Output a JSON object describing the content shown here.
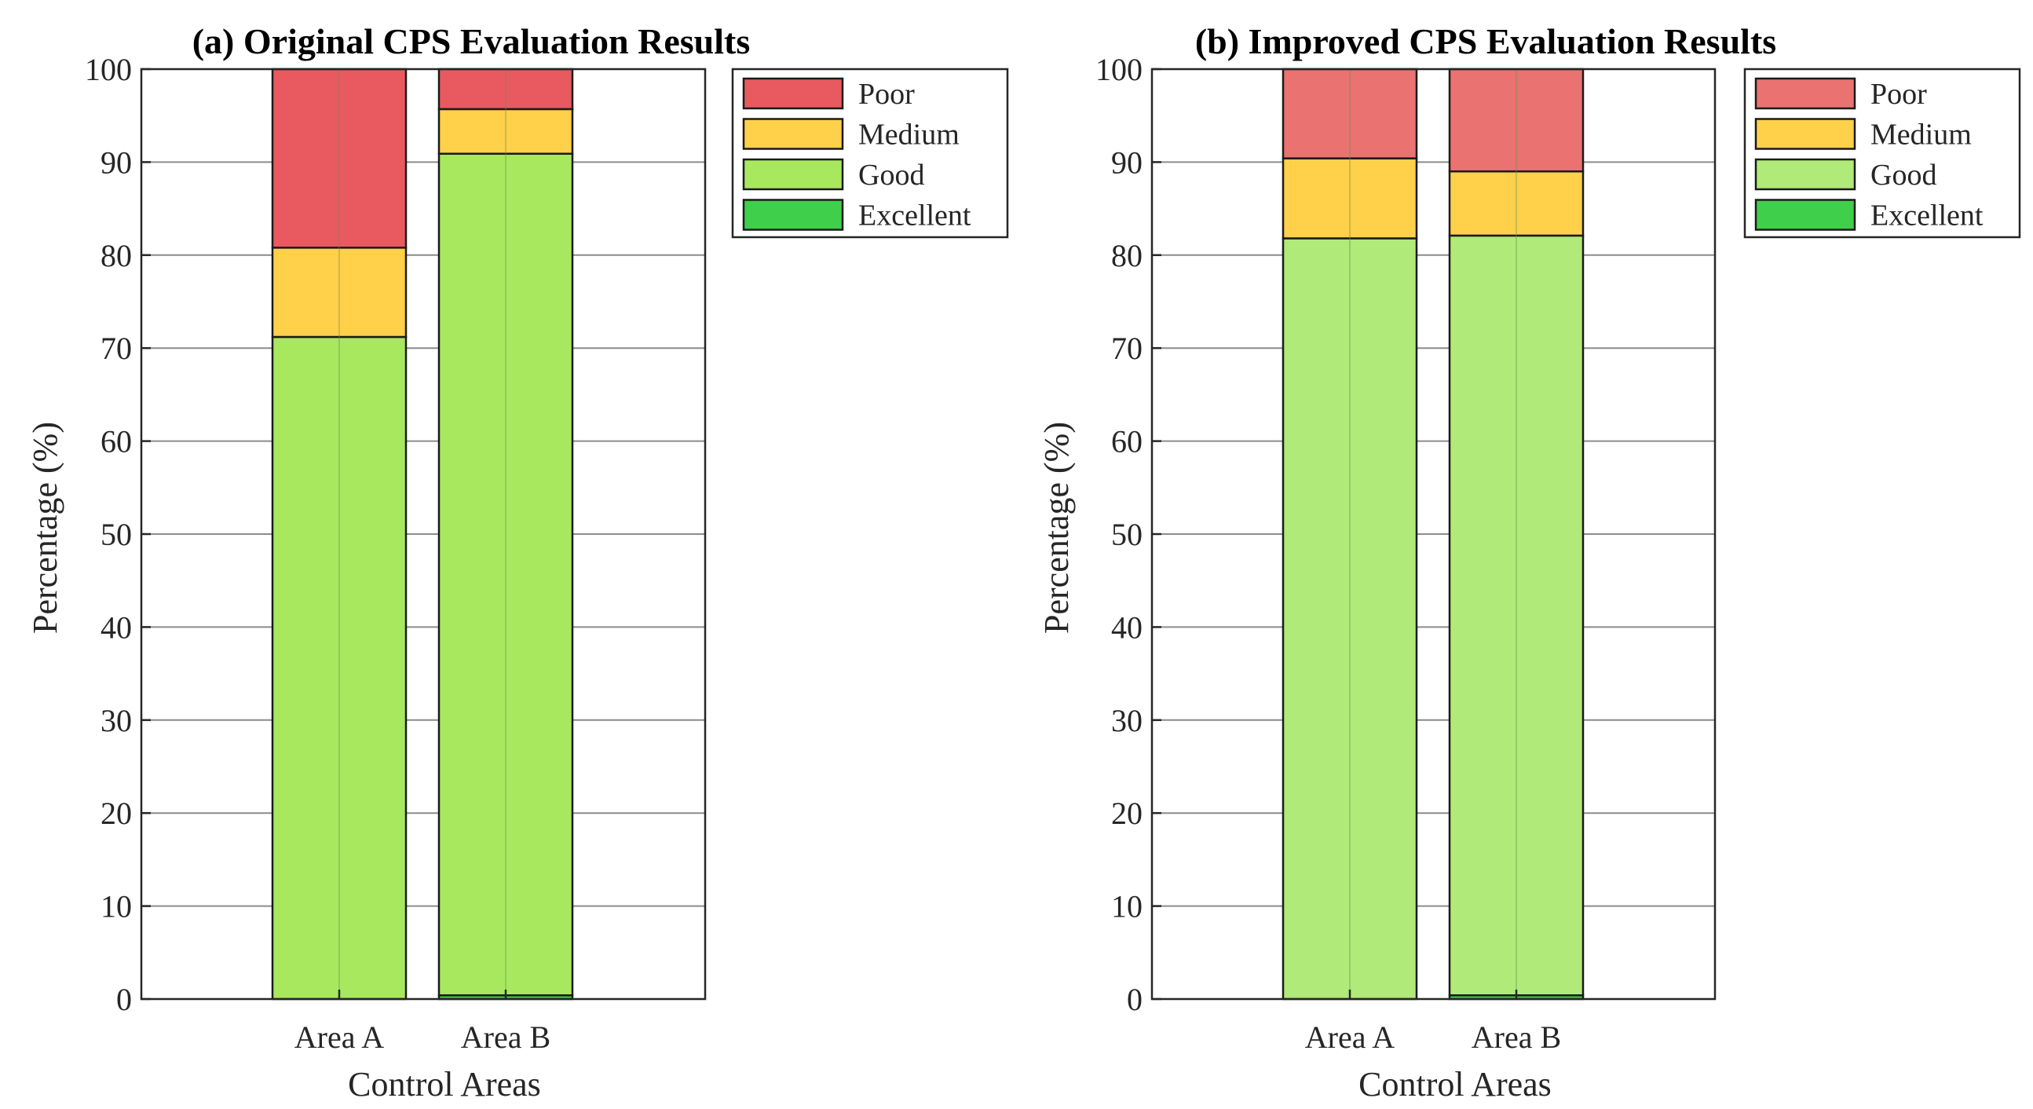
{
  "chart_data": [
    {
      "type": "bar",
      "stacked": true,
      "title": "(a) Original CPS Evaluation Results",
      "xlabel": "Control Areas",
      "ylabel": "Percentage (%)",
      "ylim": [
        0,
        100
      ],
      "yticks": [
        "0",
        "10",
        "20",
        "30",
        "40",
        "50",
        "60",
        "70",
        "80",
        "90",
        "100"
      ],
      "grid": true,
      "legend_position": "top-right, outside",
      "categories": [
        "Area A",
        "Area B"
      ],
      "series": [
        {
          "name": "Excellent",
          "color": "#3fcf4a",
          "values": [
            0.0,
            0.4
          ]
        },
        {
          "name": "Good",
          "color": "#a8e85f",
          "values": [
            71.2,
            90.5
          ]
        },
        {
          "name": "Medium",
          "color": "#ffd04a",
          "values": [
            9.6,
            4.8
          ]
        },
        {
          "name": "Poor",
          "color": "#e85a5f",
          "values": [
            19.2,
            4.3
          ]
        }
      ]
    },
    {
      "type": "bar",
      "stacked": true,
      "title": "(b) Improved CPS Evaluation Results",
      "xlabel": "Control Areas",
      "ylabel": "Percentage (%)",
      "ylim": [
        0,
        100
      ],
      "yticks": [
        "0",
        "10",
        "20",
        "30",
        "40",
        "50",
        "60",
        "70",
        "80",
        "90",
        "100"
      ],
      "grid": true,
      "legend_position": "top-right, outside",
      "categories": [
        "Area A",
        "Area B"
      ],
      "series": [
        {
          "name": "Excellent",
          "color": "#3fcf4a",
          "values": [
            0.0,
            0.4
          ]
        },
        {
          "name": "Good",
          "color": "#b0ea78",
          "values": [
            81.8,
            81.7
          ]
        },
        {
          "name": "Medium",
          "color": "#ffd04a",
          "values": [
            8.6,
            6.9
          ]
        },
        {
          "name": "Poor",
          "color": "#ea7270",
          "values": [
            9.6,
            11.0
          ]
        }
      ]
    }
  ]
}
